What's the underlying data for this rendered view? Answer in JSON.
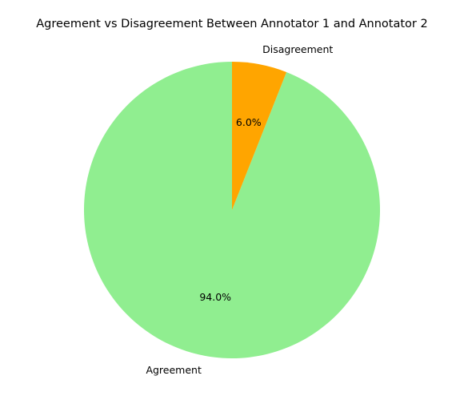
{
  "chart_data": {
    "type": "pie",
    "title": "Agreement vs Disagreement Between Annotator 1 and Annotator 2",
    "labels": [
      "Agreement",
      "Disagreement"
    ],
    "values": [
      94.0,
      6.0
    ],
    "percent_labels": [
      "94.0%",
      "6.0%"
    ],
    "colors": [
      "#90ee90",
      "#ffa500"
    ],
    "start_angle": "top, counter-clockwise (Agreement), Disagreement clockwise from top",
    "legend": "none"
  }
}
